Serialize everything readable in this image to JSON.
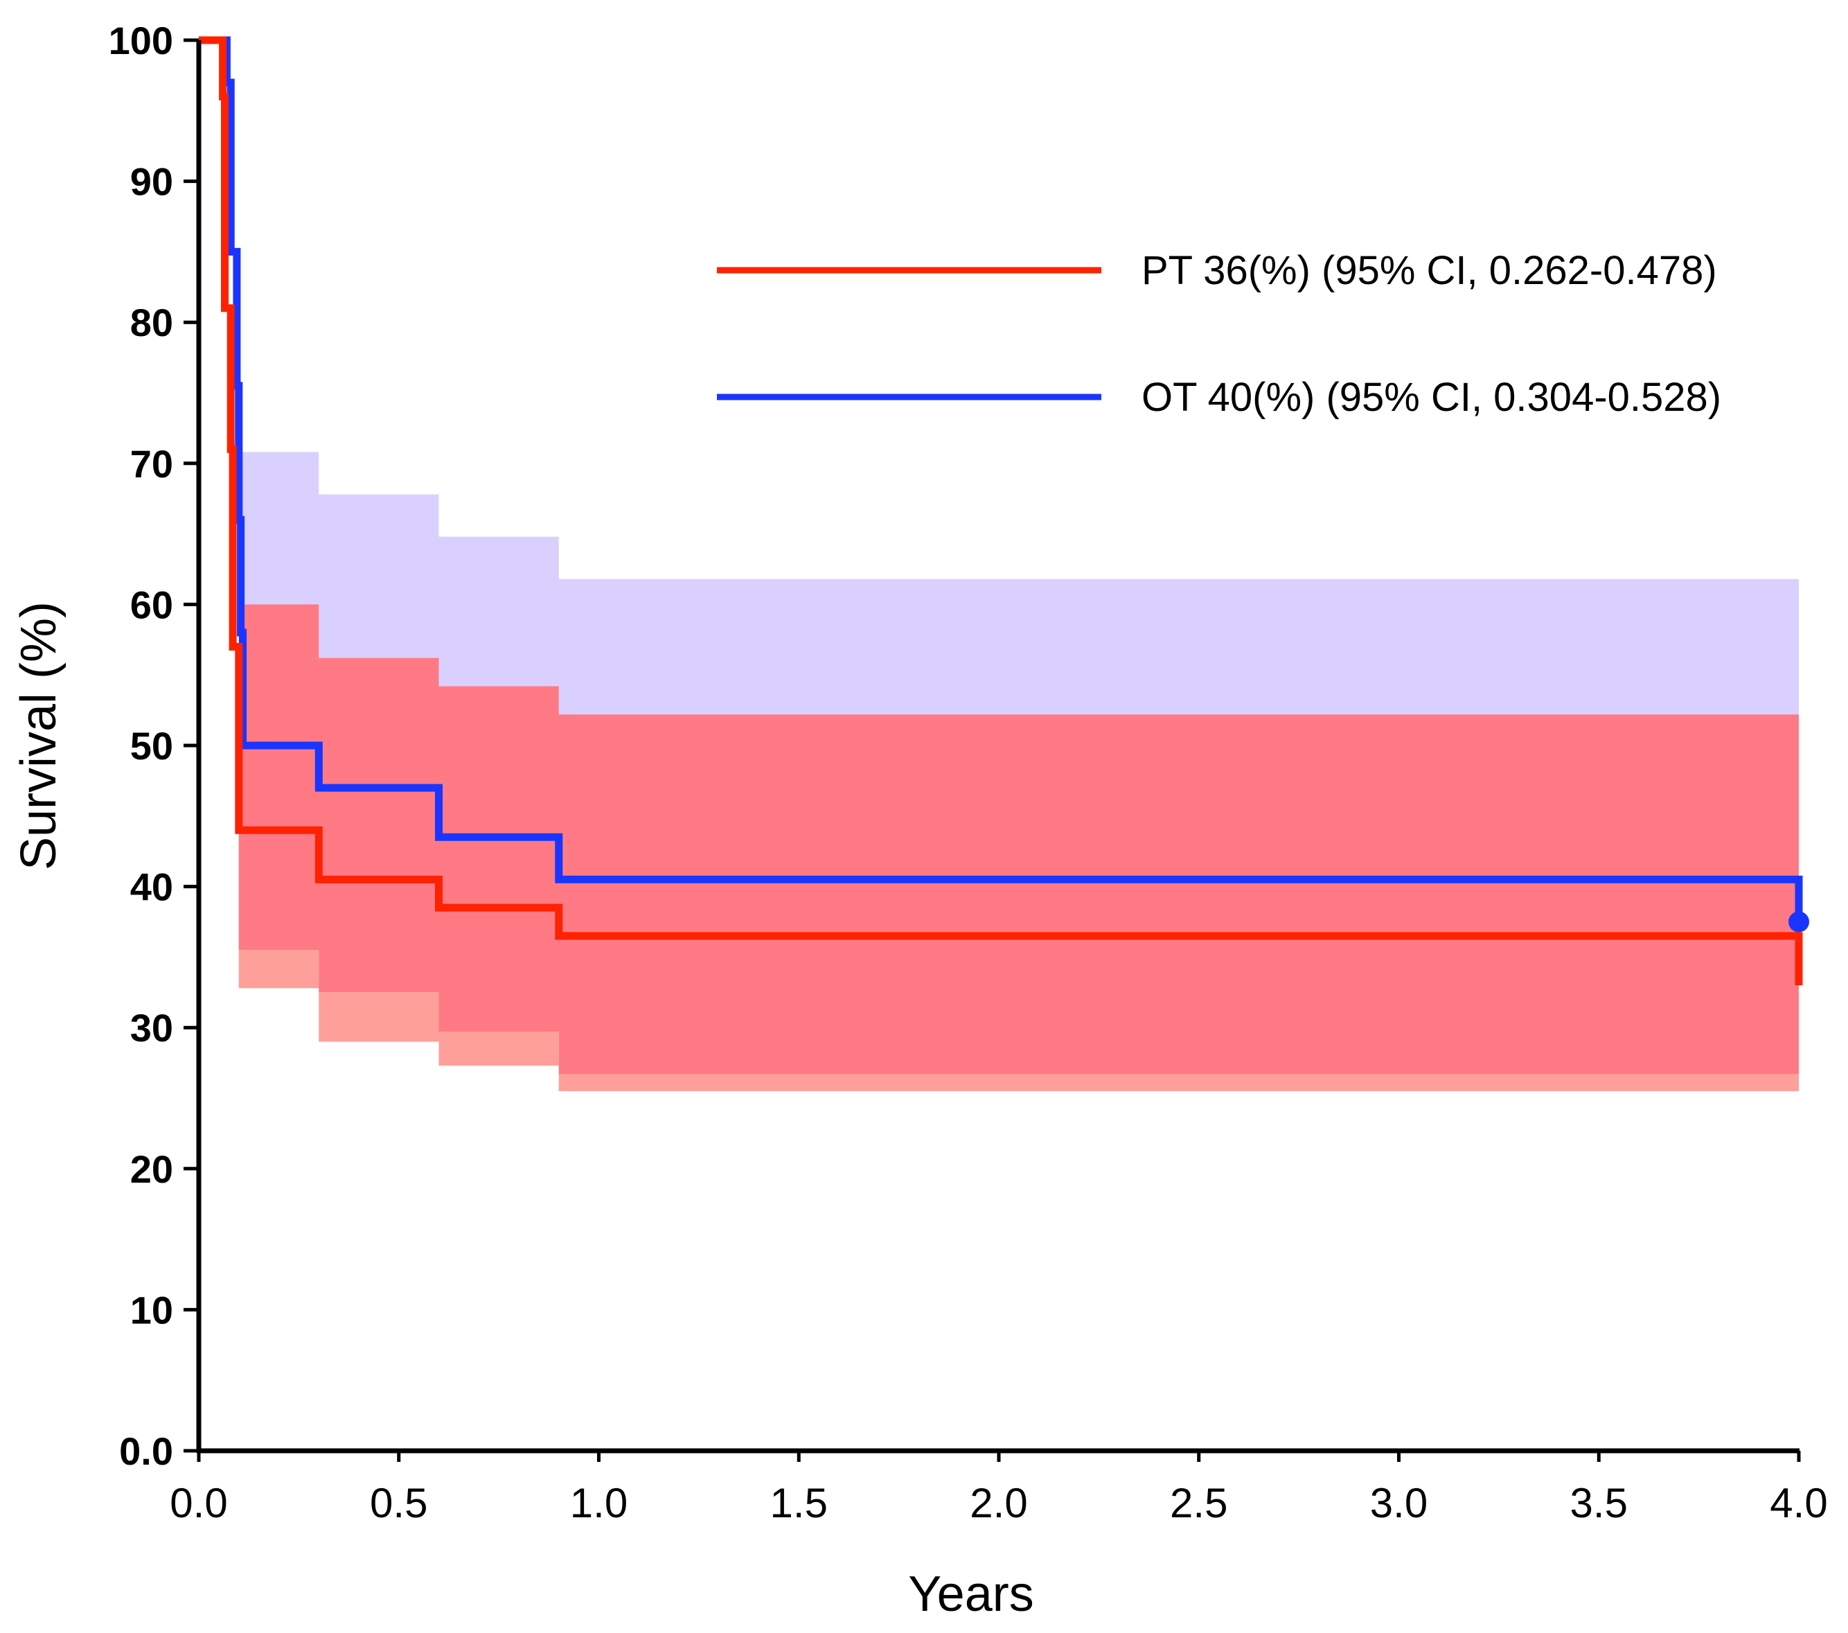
{
  "chart_data": {
    "type": "line",
    "subtype": "kaplan-meier step survival",
    "title": "",
    "xlabel": "Years",
    "ylabel": "Survival (%)",
    "xlim": [
      0,
      4
    ],
    "ylim": [
      0,
      100
    ],
    "xticks": [
      0,
      0.5,
      1.0,
      1.5,
      2.0,
      2.5,
      3.0,
      3.5,
      4.0
    ],
    "xtick_labels": [
      "0.0",
      "0.5",
      "1.0",
      "1.5",
      "2.0",
      "2.5",
      "3.0",
      "3.5",
      "4.0"
    ],
    "yticks": [
      0,
      10,
      20,
      30,
      40,
      50,
      60,
      70,
      80,
      90,
      100
    ],
    "ytick_labels": [
      "0.0",
      "10",
      "20",
      "30",
      "40",
      "50",
      "60",
      "70",
      "80",
      "90",
      "100"
    ],
    "grid": false,
    "legend_position": "top-right",
    "series": [
      {
        "name": "PT 36(%) (95% CI, 0.262-0.478)",
        "color": "#ff2200",
        "ci_color": "#ff7a84",
        "ci_lower_color": "#ff9f9a",
        "steps": [
          [
            0,
            100
          ],
          [
            0.06,
            96
          ],
          [
            0.065,
            81
          ],
          [
            0.08,
            71
          ],
          [
            0.085,
            57
          ],
          [
            0.1,
            44
          ],
          [
            0.3,
            40.5
          ],
          [
            0.6,
            38.5
          ],
          [
            0.9,
            36.5
          ],
          [
            4.0,
            33
          ]
        ],
        "ci_upper": [
          [
            0.1,
            60
          ],
          [
            0.3,
            56.2
          ],
          [
            0.6,
            54.2
          ],
          [
            0.9,
            52.2
          ],
          [
            4.0,
            52.2
          ]
        ],
        "ci_lower": [
          [
            0.1,
            32.8
          ],
          [
            0.3,
            29
          ],
          [
            0.6,
            27.3
          ],
          [
            0.9,
            25.5
          ],
          [
            4.0,
            25.5
          ]
        ]
      },
      {
        "name": "OT 40(%) (95% CI, 0.304-0.528)",
        "color": "#1a35ff",
        "ci_color": "#d9d0ff",
        "steps": [
          [
            0,
            100
          ],
          [
            0.07,
            97
          ],
          [
            0.08,
            85
          ],
          [
            0.095,
            75.5
          ],
          [
            0.1,
            66
          ],
          [
            0.105,
            58
          ],
          [
            0.11,
            50
          ],
          [
            0.3,
            47
          ],
          [
            0.6,
            43.5
          ],
          [
            0.9,
            40.5
          ],
          [
            4.0,
            37.5
          ]
        ],
        "ci_upper": [
          [
            0.1,
            70.8
          ],
          [
            0.3,
            67.8
          ],
          [
            0.6,
            64.8
          ],
          [
            0.9,
            61.8
          ],
          [
            4.0,
            61.8
          ]
        ],
        "ci_lower": [
          [
            0.1,
            35.5
          ],
          [
            0.3,
            32.5
          ],
          [
            0.6,
            29.7
          ],
          [
            0.9,
            26.7
          ],
          [
            4.0,
            26.7
          ]
        ],
        "censor_marks": [
          [
            4.0,
            37.5
          ]
        ]
      }
    ]
  }
}
